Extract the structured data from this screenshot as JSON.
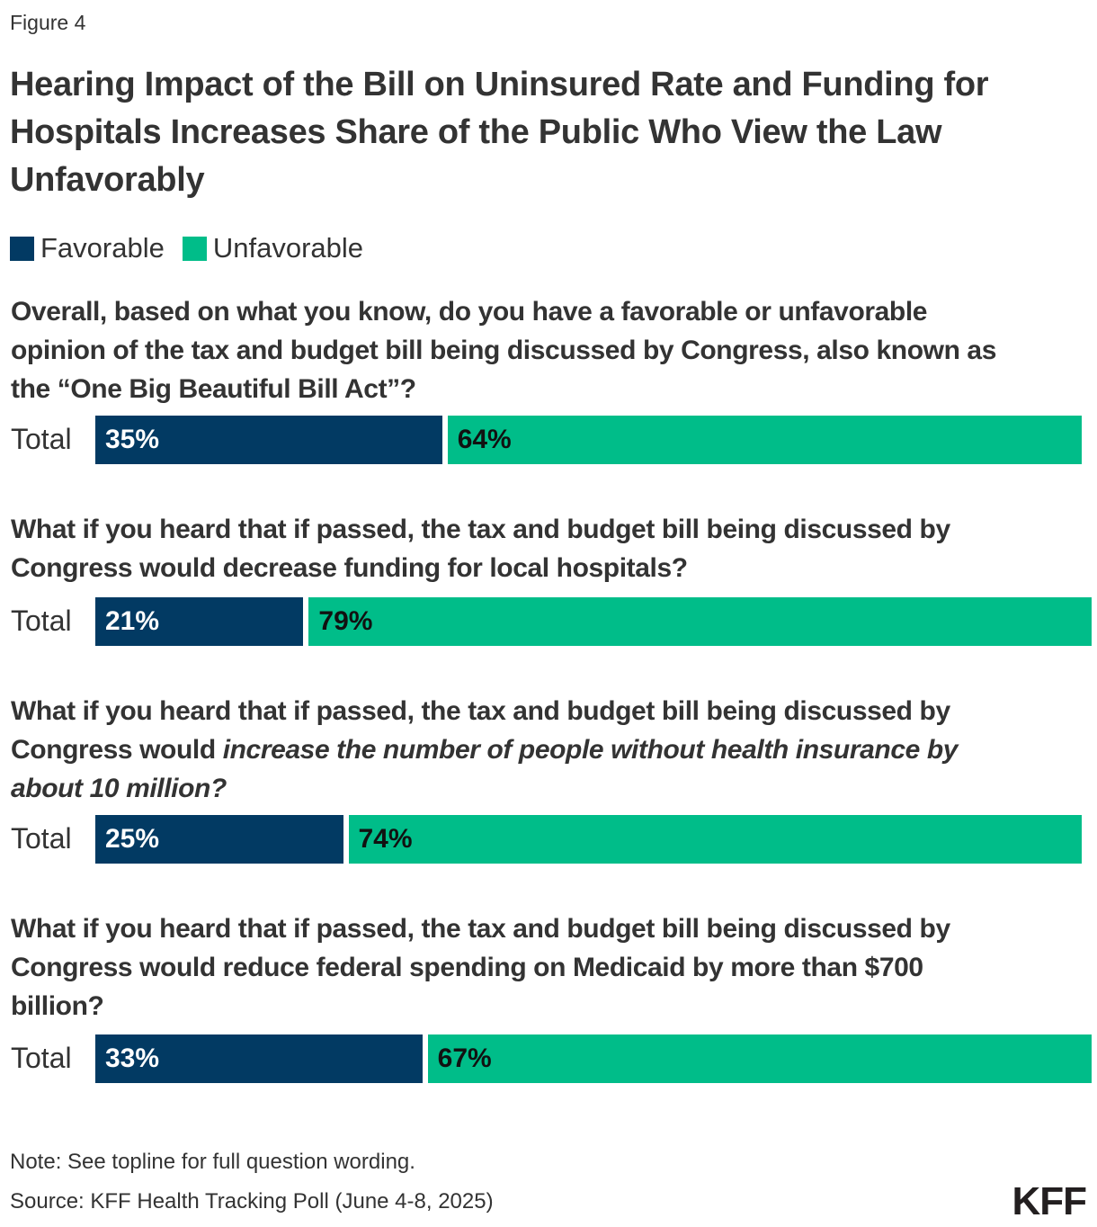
{
  "figure_label": "Figure 4",
  "chart_data": {
    "type": "bar",
    "orientation": "horizontal-stacked",
    "title": "Hearing Impact of the Bill on Uninsured Rate and Funding for Hospitals Increases Share of the Public Who View the Law Unfavorably",
    "legend": {
      "placement": "top-left",
      "entries": [
        "Favorable",
        "Unfavorable"
      ]
    },
    "colors": {
      "Favorable": "#023A63",
      "Unfavorable": "#00BD89"
    },
    "row_label": "Total",
    "questions": [
      {
        "lines": [
          [
            {
              "t": "Overall, based on what you know, do you have a favorable or unfavorable"
            }
          ],
          [
            {
              "t": "opinion of the tax and budget bill being discussed by Congress, also known as"
            }
          ],
          [
            {
              "t": "the “One Big Beautiful Bill Act”?"
            }
          ]
        ],
        "favorable": 35,
        "unfavorable": 64
      },
      {
        "lines": [
          [
            {
              "t": "What if you heard that if passed, the tax and budget bill being discussed by"
            }
          ],
          [
            {
              "t": "Congress would decrease funding for local hospitals?"
            }
          ]
        ],
        "favorable": 21,
        "unfavorable": 79
      },
      {
        "lines": [
          [
            {
              "t": "What if you heard that if passed, the tax and budget bill being discussed by"
            }
          ],
          [
            {
              "t": "Congress would "
            },
            {
              "t": "increase the number of people without health insurance by",
              "i": true
            }
          ],
          [
            {
              "t": "about 10 million?",
              "i": true
            }
          ]
        ],
        "favorable": 25,
        "unfavorable": 74
      },
      {
        "lines": [
          [
            {
              "t": "What if you heard that if passed, the tax and budget bill being discussed by"
            }
          ],
          [
            {
              "t": "Congress would reduce federal spending on Medicaid by more than $700"
            }
          ],
          [
            {
              "t": "billion?"
            }
          ]
        ],
        "favorable": 33,
        "unfavorable": 67
      }
    ],
    "value_suffix": "%",
    "xlim": [
      0,
      100
    ]
  },
  "note": "Note: See topline for full question wording.",
  "source": "Source: KFF Health Tracking Poll (June 4-8, 2025)",
  "logo": "KFF"
}
